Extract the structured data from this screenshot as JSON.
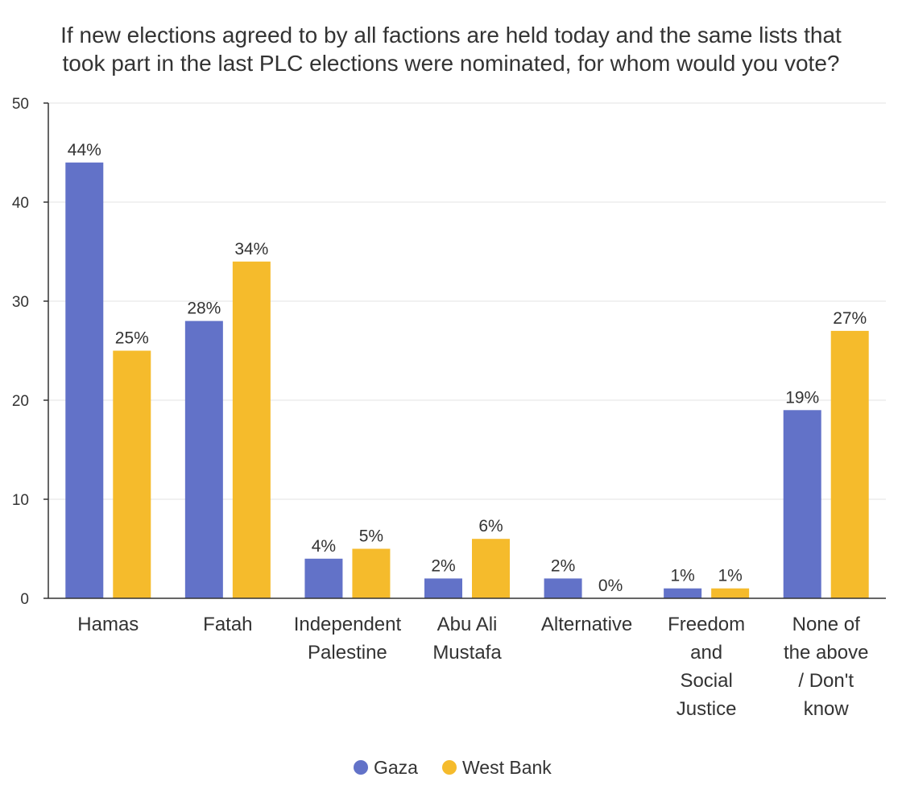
{
  "chart_data": {
    "type": "bar",
    "title": "If new elections agreed to by all factions are held today and the same lists that took part in the last PLC elections were nominated, for whom would you vote?",
    "title_lines": [
      "If new elections agreed to by all factions are held today and the same lists that",
      "took part in the last PLC elections were nominated, for whom would you vote?"
    ],
    "categories": [
      "Hamas",
      "Fatah",
      "Independent Palestine",
      "Abu Ali Mustafa",
      "Alternative",
      "Freedom and Social Justice",
      "None of the above / Don't know"
    ],
    "category_label_lines": [
      [
        "Hamas"
      ],
      [
        "Fatah"
      ],
      [
        "Independent",
        "Palestine"
      ],
      [
        "Abu Ali",
        "Mustafa"
      ],
      [
        "Alternative"
      ],
      [
        "Freedom",
        "and",
        "Social",
        "Justice"
      ],
      [
        "None of",
        "the above",
        "/ Don't",
        "know"
      ]
    ],
    "series": [
      {
        "name": "Gaza",
        "color": "#6272c8",
        "values": [
          44,
          28,
          4,
          2,
          2,
          1,
          19
        ],
        "labels": [
          "44%",
          "28%",
          "4%",
          "2%",
          "2%",
          "1%",
          "19%"
        ]
      },
      {
        "name": "West Bank",
        "color": "#f5bb2c",
        "values": [
          25,
          34,
          5,
          6,
          0,
          1,
          27
        ],
        "labels": [
          "25%",
          "34%",
          "5%",
          "6%",
          "0%",
          "1%",
          "27%"
        ]
      }
    ],
    "xlabel": "",
    "ylabel": "",
    "ylim": [
      0,
      50
    ],
    "yticks": [
      0,
      10,
      20,
      30,
      40,
      50
    ],
    "grid": true,
    "legend_position": "bottom-center"
  }
}
